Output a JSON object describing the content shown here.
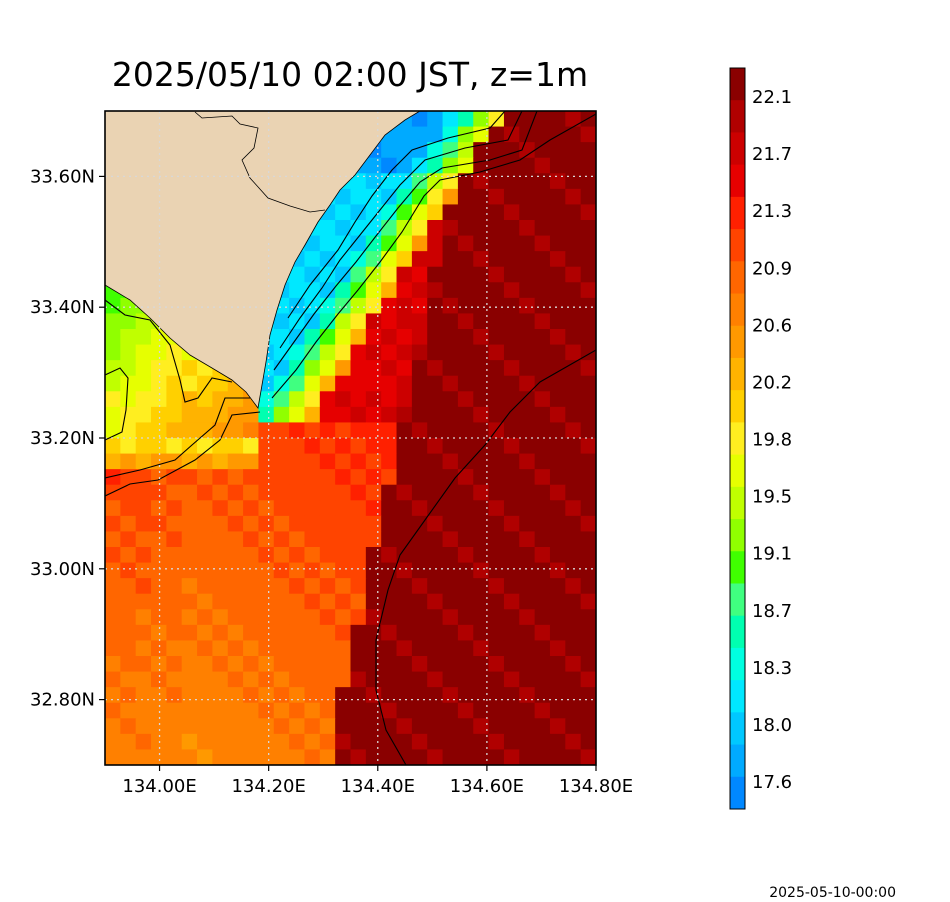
{
  "title": "2025/05/10 02:00 JST, z=1m",
  "timestamp": "2025-05-10-00:00",
  "map": {
    "lon_range": [
      133.9,
      134.8
    ],
    "lat_range": [
      32.7,
      33.7
    ],
    "x_ticks": [
      {
        "value": 134.0,
        "label": "134.00E"
      },
      {
        "value": 134.2,
        "label": "134.20E"
      },
      {
        "value": 134.4,
        "label": "134.40E"
      },
      {
        "value": 134.6,
        "label": "134.60E"
      },
      {
        "value": 134.8,
        "label": "134.80E"
      }
    ],
    "y_ticks": [
      {
        "value": 33.6,
        "label": "33.60N"
      },
      {
        "value": 33.4,
        "label": "33.40N"
      },
      {
        "value": 33.2,
        "label": "33.20N"
      },
      {
        "value": 33.0,
        "label": "33.00N"
      },
      {
        "value": 32.8,
        "label": "32.80N"
      }
    ],
    "grid": "dotted",
    "land_color": "#ead3b3"
  },
  "colorbar": {
    "tick_labels": [
      "22.1",
      "21.7",
      "21.3",
      "20.9",
      "20.6",
      "20.2",
      "19.8",
      "19.5",
      "19.1",
      "18.7",
      "18.3",
      "18.0",
      "17.6"
    ],
    "colors": [
      "#8a0000",
      "#b00000",
      "#cc0000",
      "#e60000",
      "#ff2000",
      "#ff4400",
      "#ff6600",
      "#ff8000",
      "#ff9900",
      "#ffb300",
      "#ffd000",
      "#ffee20",
      "#e6ff00",
      "#c0ff00",
      "#90ff00",
      "#40ff00",
      "#40ff80",
      "#00ffb0",
      "#00ffe0",
      "#00e8ff",
      "#00c8ff",
      "#00aaff",
      "#0088ff"
    ]
  }
}
